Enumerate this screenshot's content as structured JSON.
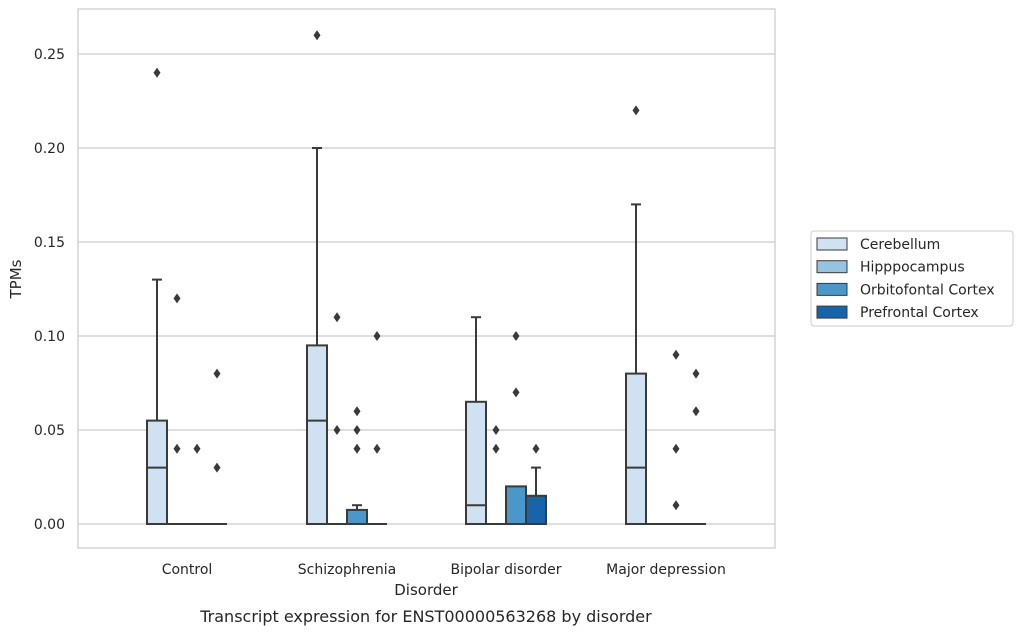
{
  "chart_data": {
    "type": "box",
    "caption": "Transcript expression for ENST00000563268 by disorder",
    "xlabel": "Disorder",
    "ylabel": "TPMs",
    "ylim": [
      -0.0125,
      0.2725
    ],
    "yticks": [
      "0.00",
      "0.05",
      "0.10",
      "0.15",
      "0.20",
      "0.25"
    ],
    "grid": true,
    "legend_position": "right",
    "categories": [
      "Control",
      "Schizophrenia",
      "Bipolar disorder",
      "Major depression"
    ],
    "series": [
      {
        "name": "Cerebellum",
        "color": "#d0e1f2",
        "boxes": [
          {
            "q1": 0.0,
            "median": 0.03,
            "q3": 0.055,
            "whisker_low": 0.0,
            "whisker_high": 0.13,
            "outliers": [
              0.24
            ]
          },
          {
            "q1": 0.0,
            "median": 0.055,
            "q3": 0.095,
            "whisker_low": 0.0,
            "whisker_high": 0.2,
            "outliers": [
              0.26
            ]
          },
          {
            "q1": 0.0,
            "median": 0.01,
            "q3": 0.065,
            "whisker_low": 0.0,
            "whisker_high": 0.11,
            "outliers": []
          },
          {
            "q1": 0.0,
            "median": 0.03,
            "q3": 0.08,
            "whisker_low": 0.0,
            "whisker_high": 0.17,
            "outliers": [
              0.22
            ]
          }
        ]
      },
      {
        "name": "Hipppocampus",
        "color": "#94c4df",
        "boxes": [
          {
            "q1": 0.0,
            "median": 0.0,
            "q3": 0.0,
            "whisker_low": 0.0,
            "whisker_high": 0.0,
            "outliers": [
              0.12,
              0.04
            ]
          },
          {
            "q1": 0.0,
            "median": 0.0,
            "q3": 0.0,
            "whisker_low": 0.0,
            "whisker_high": 0.0,
            "outliers": [
              0.11,
              0.05
            ]
          },
          {
            "q1": 0.0,
            "median": 0.0,
            "q3": 0.0,
            "whisker_low": 0.0,
            "whisker_high": 0.0,
            "outliers": [
              0.05,
              0.04
            ]
          },
          {
            "q1": 0.0,
            "median": 0.0,
            "q3": 0.0,
            "whisker_low": 0.0,
            "whisker_high": 0.0,
            "outliers": []
          }
        ]
      },
      {
        "name": "Orbitofontal Cortex",
        "color": "#4a98c9",
        "boxes": [
          {
            "q1": 0.0,
            "median": 0.0,
            "q3": 0.0,
            "whisker_low": 0.0,
            "whisker_high": 0.0,
            "outliers": [
              0.04
            ]
          },
          {
            "q1": 0.0,
            "median": 0.0,
            "q3": 0.0075,
            "whisker_low": 0.0,
            "whisker_high": 0.01,
            "outliers": [
              0.06,
              0.05,
              0.04
            ]
          },
          {
            "q1": 0.0,
            "median": 0.0,
            "q3": 0.02,
            "whisker_low": 0.0,
            "whisker_high": 0.02,
            "outliers": [
              0.1,
              0.07
            ]
          },
          {
            "q1": 0.0,
            "median": 0.0,
            "q3": 0.0,
            "whisker_low": 0.0,
            "whisker_high": 0.0,
            "outliers": [
              0.09,
              0.04,
              0.01
            ]
          }
        ]
      },
      {
        "name": "Prefrontal Cortex",
        "color": "#1764ab",
        "boxes": [
          {
            "q1": 0.0,
            "median": 0.0,
            "q3": 0.0,
            "whisker_low": 0.0,
            "whisker_high": 0.0,
            "outliers": [
              0.08,
              0.03
            ]
          },
          {
            "q1": 0.0,
            "median": 0.0,
            "q3": 0.0,
            "whisker_low": 0.0,
            "whisker_high": 0.0,
            "outliers": [
              0.1,
              0.04
            ]
          },
          {
            "q1": 0.0,
            "median": 0.0,
            "q3": 0.015,
            "whisker_low": 0.0,
            "whisker_high": 0.03,
            "outliers": [
              0.04
            ]
          },
          {
            "q1": 0.0,
            "median": 0.0,
            "q3": 0.0,
            "whisker_low": 0.0,
            "whisker_high": 0.0,
            "outliers": [
              0.08,
              0.06
            ]
          }
        ]
      }
    ]
  }
}
